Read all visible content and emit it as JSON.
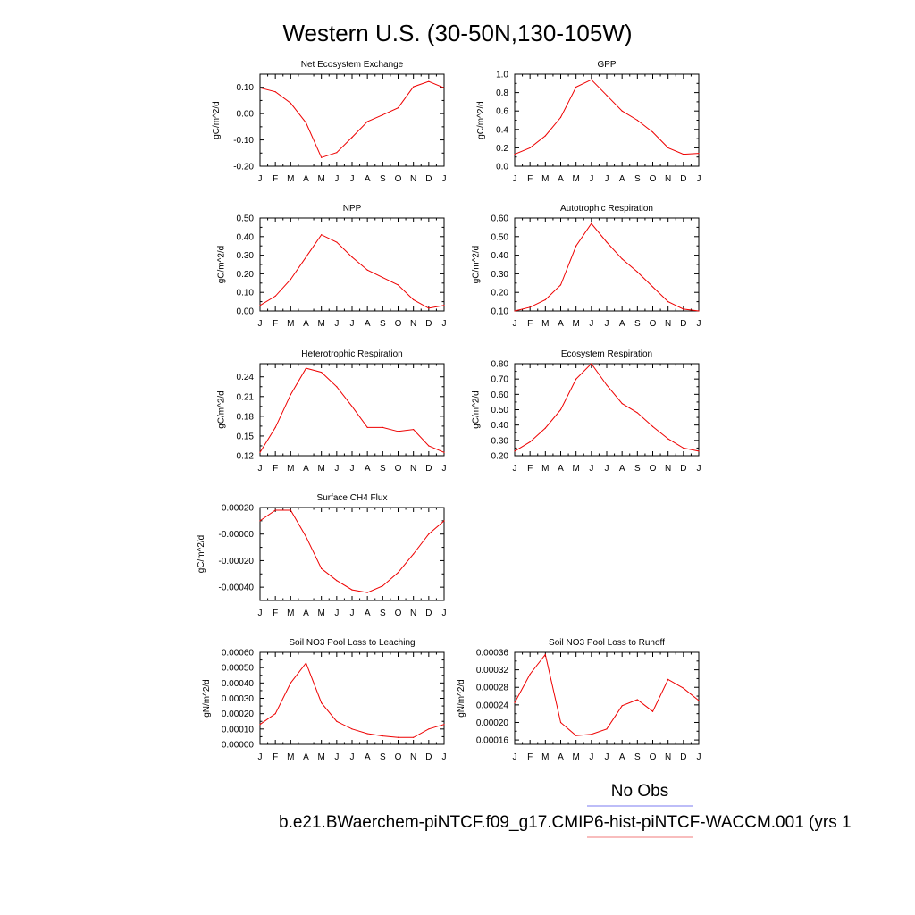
{
  "figure": {
    "title": "Western U.S. (30-50N,130-105W)",
    "legend_label": "No Obs",
    "case_label": "b.e21.BWaerchem-piNTCF.f09_g17.CMIP6-hist-piNTCF-WACCM.001 (yrs 1",
    "legend_colors": {
      "obs": "#7b7bf0",
      "model": "#f07b7b"
    },
    "line_color": "#ee0000"
  },
  "chart_data": [
    {
      "id": "nee",
      "type": "line",
      "title": "Net Ecosystem Exchange",
      "ylabel": "gC/m^2/d",
      "x": [
        "J",
        "F",
        "M",
        "A",
        "M",
        "J",
        "J",
        "A",
        "S",
        "O",
        "N",
        "D",
        "J"
      ],
      "values": [
        0.098,
        0.083,
        0.04,
        -0.035,
        -0.167,
        -0.148,
        -0.09,
        -0.03,
        -0.005,
        0.022,
        0.102,
        0.122,
        0.098
      ],
      "ylim": [
        -0.2,
        0.15
      ],
      "yticks": [
        {
          "v": 0.1,
          "label": "0.10"
        },
        {
          "v": 0.0,
          "label": "0.00"
        },
        {
          "v": -0.1,
          "label": "-0.10"
        },
        {
          "v": -0.2,
          "label": "-0.20"
        }
      ]
    },
    {
      "id": "gpp",
      "type": "line",
      "title": "GPP",
      "ylabel": "gC/m^2/d",
      "x": [
        "J",
        "F",
        "M",
        "A",
        "M",
        "J",
        "J",
        "A",
        "S",
        "O",
        "N",
        "D",
        "J"
      ],
      "values": [
        0.13,
        0.2,
        0.33,
        0.53,
        0.86,
        0.94,
        0.77,
        0.6,
        0.5,
        0.37,
        0.2,
        0.13,
        0.14
      ],
      "ylim": [
        0.0,
        1.0
      ],
      "yticks": [
        {
          "v": 0.0,
          "label": "0.0"
        },
        {
          "v": 0.2,
          "label": "0.2"
        },
        {
          "v": 0.4,
          "label": "0.4"
        },
        {
          "v": 0.6,
          "label": "0.6"
        },
        {
          "v": 0.8,
          "label": "0.8"
        },
        {
          "v": 1.0,
          "label": "1.0"
        }
      ]
    },
    {
      "id": "npp",
      "type": "line",
      "title": "NPP",
      "ylabel": "gC/m^2/d",
      "x": [
        "J",
        "F",
        "M",
        "A",
        "M",
        "J",
        "J",
        "A",
        "S",
        "O",
        "N",
        "D",
        "J"
      ],
      "values": [
        0.03,
        0.08,
        0.17,
        0.29,
        0.41,
        0.37,
        0.29,
        0.22,
        0.18,
        0.14,
        0.06,
        0.015,
        0.03
      ],
      "ylim": [
        0.0,
        0.5
      ],
      "yticks": [
        {
          "v": 0.0,
          "label": "0.00"
        },
        {
          "v": 0.1,
          "label": "0.10"
        },
        {
          "v": 0.2,
          "label": "0.20"
        },
        {
          "v": 0.3,
          "label": "0.30"
        },
        {
          "v": 0.4,
          "label": "0.40"
        },
        {
          "v": 0.5,
          "label": "0.50"
        }
      ]
    },
    {
      "id": "ar",
      "type": "line",
      "title": "Autotrophic Respiration",
      "ylabel": "gC/m^2/d",
      "x": [
        "J",
        "F",
        "M",
        "A",
        "M",
        "J",
        "J",
        "A",
        "S",
        "O",
        "N",
        "D",
        "J"
      ],
      "values": [
        0.1,
        0.12,
        0.16,
        0.24,
        0.45,
        0.57,
        0.47,
        0.38,
        0.31,
        0.23,
        0.15,
        0.11,
        0.1
      ],
      "ylim": [
        0.1,
        0.6
      ],
      "yticks": [
        {
          "v": 0.1,
          "label": "0.10"
        },
        {
          "v": 0.2,
          "label": "0.20"
        },
        {
          "v": 0.3,
          "label": "0.30"
        },
        {
          "v": 0.4,
          "label": "0.40"
        },
        {
          "v": 0.5,
          "label": "0.50"
        },
        {
          "v": 0.6,
          "label": "0.60"
        }
      ]
    },
    {
      "id": "hr",
      "type": "line",
      "title": "Heterotrophic Respiration",
      "ylabel": "gC/m^2/d",
      "x": [
        "J",
        "F",
        "M",
        "A",
        "M",
        "J",
        "J",
        "A",
        "S",
        "O",
        "N",
        "D",
        "J"
      ],
      "values": [
        0.125,
        0.163,
        0.213,
        0.253,
        0.247,
        0.225,
        0.195,
        0.163,
        0.163,
        0.157,
        0.16,
        0.135,
        0.125
      ],
      "ylim": [
        0.12,
        0.26
      ],
      "yticks": [
        {
          "v": 0.12,
          "label": "0.12"
        },
        {
          "v": 0.15,
          "label": "0.15"
        },
        {
          "v": 0.18,
          "label": "0.18"
        },
        {
          "v": 0.21,
          "label": "0.21"
        },
        {
          "v": 0.24,
          "label": "0.24"
        }
      ]
    },
    {
      "id": "er",
      "type": "line",
      "title": "Ecosystem Respiration",
      "ylabel": "gC/m^2/d",
      "x": [
        "J",
        "F",
        "M",
        "A",
        "M",
        "J",
        "J",
        "A",
        "S",
        "O",
        "N",
        "D",
        "J"
      ],
      "values": [
        0.23,
        0.29,
        0.38,
        0.5,
        0.7,
        0.8,
        0.66,
        0.54,
        0.48,
        0.39,
        0.31,
        0.25,
        0.23
      ],
      "ylim": [
        0.2,
        0.8
      ],
      "yticks": [
        {
          "v": 0.2,
          "label": "0.20"
        },
        {
          "v": 0.3,
          "label": "0.30"
        },
        {
          "v": 0.4,
          "label": "0.40"
        },
        {
          "v": 0.5,
          "label": "0.50"
        },
        {
          "v": 0.6,
          "label": "0.60"
        },
        {
          "v": 0.7,
          "label": "0.70"
        },
        {
          "v": 0.8,
          "label": "0.80"
        }
      ]
    },
    {
      "id": "ch4",
      "type": "line",
      "title": "Surface CH4 Flux",
      "ylabel": "gC/m^2/d",
      "x": [
        "J",
        "F",
        "M",
        "A",
        "M",
        "J",
        "J",
        "A",
        "S",
        "O",
        "N",
        "D",
        "J"
      ],
      "values": [
        0.0001,
        0.00018,
        0.00018,
        -2e-05,
        -0.00026,
        -0.00035,
        -0.00042,
        -0.00044,
        -0.00039,
        -0.00029,
        -0.00015,
        0.0,
        0.0001
      ],
      "ylim": [
        -0.0005,
        0.0002
      ],
      "yticks": [
        {
          "v": 0.0002,
          "label": "0.00020"
        },
        {
          "v": 0.0,
          "label": "-0.00000"
        },
        {
          "v": -0.0002,
          "label": "-0.00020"
        },
        {
          "v": -0.0004,
          "label": "-0.00040"
        }
      ]
    },
    {
      "id": "leach",
      "type": "line",
      "title": "Soil NO3 Pool Loss to Leaching",
      "ylabel": "gN/m^2/d",
      "x": [
        "J",
        "F",
        "M",
        "A",
        "M",
        "J",
        "J",
        "A",
        "S",
        "O",
        "N",
        "D",
        "J"
      ],
      "values": [
        0.00013,
        0.0002,
        0.0004,
        0.00053,
        0.00027,
        0.00015,
        0.0001,
        7e-05,
        5.5e-05,
        4.5e-05,
        4.5e-05,
        0.0001,
        0.00013
      ],
      "ylim": [
        0.0,
        0.0006
      ],
      "yticks": [
        {
          "v": 0.0,
          "label": "0.00000"
        },
        {
          "v": 0.0001,
          "label": "0.00010"
        },
        {
          "v": 0.0002,
          "label": "0.00020"
        },
        {
          "v": 0.0003,
          "label": "0.00030"
        },
        {
          "v": 0.0004,
          "label": "0.00040"
        },
        {
          "v": 0.0005,
          "label": "0.00050"
        },
        {
          "v": 0.0006,
          "label": "0.00060"
        }
      ]
    },
    {
      "id": "runoff",
      "type": "line",
      "title": "Soil NO3 Pool Loss to Runoff",
      "ylabel": "gN/m^2/d",
      "x": [
        "J",
        "F",
        "M",
        "A",
        "M",
        "J",
        "J",
        "A",
        "S",
        "O",
        "N",
        "D",
        "J"
      ],
      "values": [
        0.000245,
        0.00031,
        0.000355,
        0.0002,
        0.00017,
        0.000173,
        0.000185,
        0.000238,
        0.000252,
        0.000225,
        0.000298,
        0.000278,
        0.00025
      ],
      "ylim": [
        0.00015,
        0.00036
      ],
      "yticks": [
        {
          "v": 0.00016,
          "label": "0.00016"
        },
        {
          "v": 0.0002,
          "label": "0.00020"
        },
        {
          "v": 0.00024,
          "label": "0.00024"
        },
        {
          "v": 0.00028,
          "label": "0.00028"
        },
        {
          "v": 0.00032,
          "label": "0.00032"
        },
        {
          "v": 0.00036,
          "label": "0.00036"
        }
      ]
    }
  ]
}
